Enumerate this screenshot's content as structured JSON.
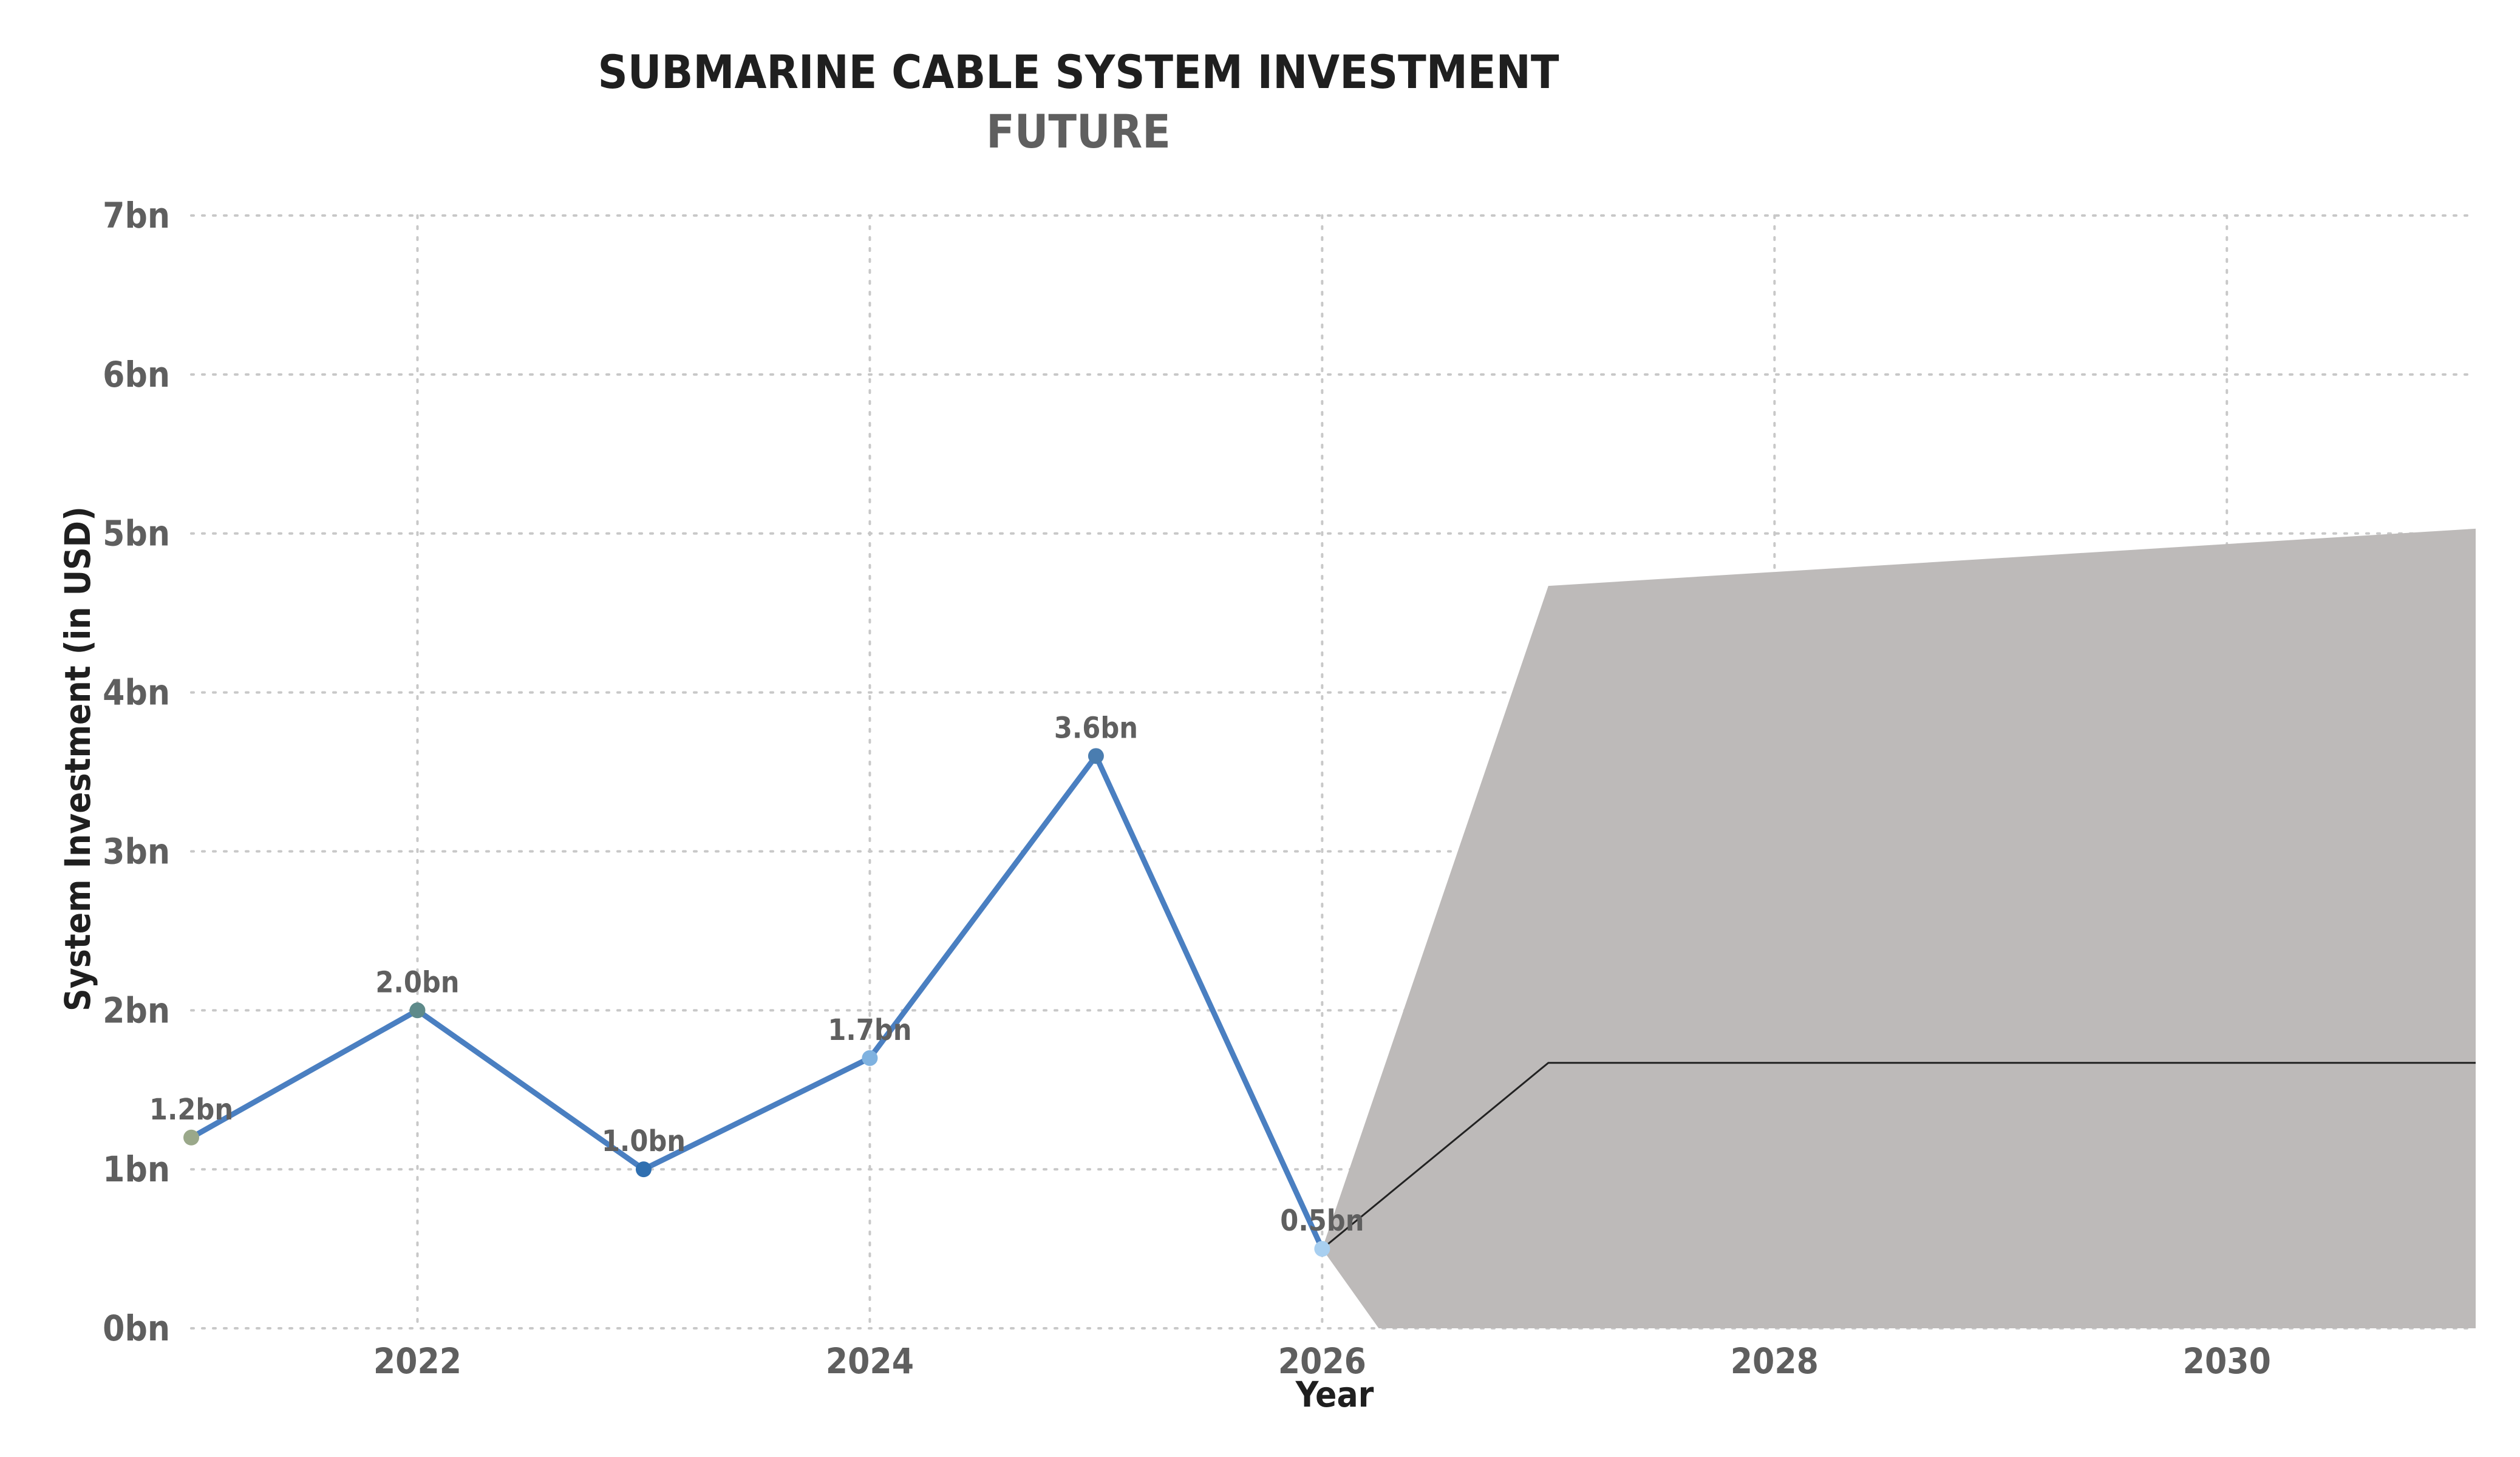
{
  "chart_data": {
    "type": "line",
    "title": "SUBMARINE CABLE SYSTEM INVESTMENT",
    "subtitle": "FUTURE",
    "xlabel": "Year",
    "ylabel": "System Investment (in USD)",
    "xlim": [
      2021,
      2031.1
    ],
    "ylim": [
      0,
      7
    ],
    "x_ticks": [
      2022,
      2024,
      2026,
      2028,
      2030
    ],
    "y_ticks": [
      0,
      1,
      2,
      3,
      4,
      5,
      6,
      7
    ],
    "y_tick_labels": [
      "0bn",
      "1bn",
      "2bn",
      "3bn",
      "4bn",
      "5bn",
      "6bn",
      "7bn"
    ],
    "grid": true,
    "series": [
      {
        "values_x": [
          2021,
          2022,
          2023,
          2024,
          2025,
          2026
        ],
        "values": [
          1.2,
          2.0,
          1.0,
          1.7,
          3.6,
          0.5
        ],
        "labels": [
          "1.2bn",
          "2.0bn",
          "1.0bn",
          "1.7bn",
          "3.6bn",
          "0.5bn"
        ],
        "color": "#4a7fc1",
        "marker_colors": [
          "#9aa88a",
          "#5e8a8a",
          "#2f6fb0",
          "#7fb2e0",
          "#4a7db0",
          "#a8cff0"
        ]
      }
    ],
    "forecast": {
      "x": [
        2026,
        2027,
        2031.1
      ],
      "values": [
        0.5,
        1.67,
        1.67
      ],
      "line_color": "#222222"
    },
    "confidence_band": {
      "upper_x": [
        2026,
        2027,
        2031.1
      ],
      "upper": [
        0.5,
        4.67,
        5.03
      ],
      "lower_x": [
        2026,
        2026.25,
        2031.1
      ],
      "lower": [
        0.5,
        0,
        0
      ],
      "color": "#bdbab9"
    }
  }
}
